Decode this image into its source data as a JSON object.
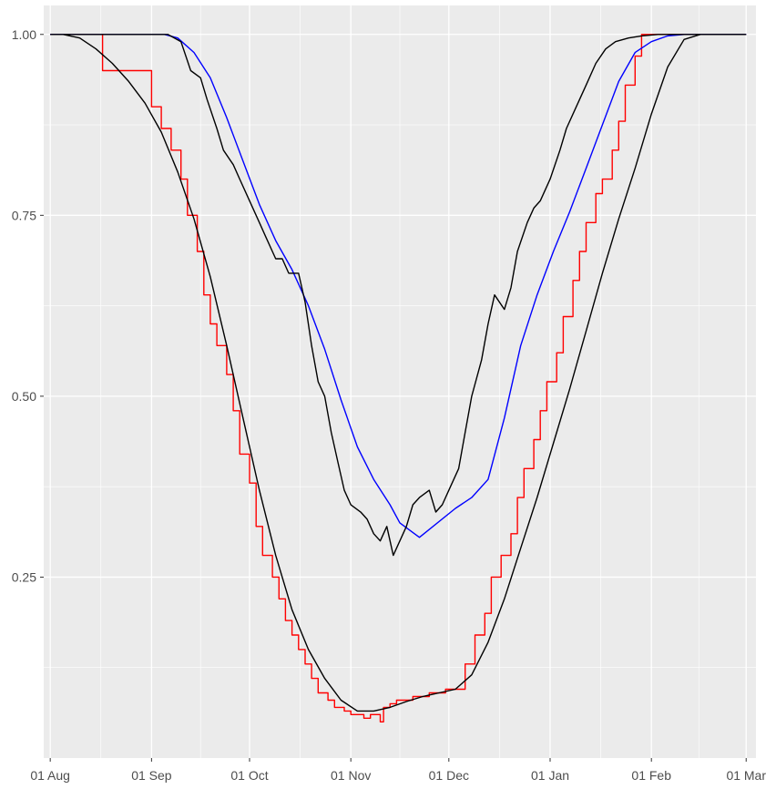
{
  "chart_data": {
    "type": "line",
    "title": "",
    "xlabel": "",
    "ylabel": "",
    "xlim": [
      "2023-07-30",
      "2024-03-04"
    ],
    "ylim": [
      0.0,
      1.04
    ],
    "grid": true,
    "legend": "none",
    "background_color": "#ebebeb",
    "grid_color": "#ffffff",
    "x_ticks": [
      {
        "value": "2023-08-01",
        "label": "01 Aug"
      },
      {
        "value": "2023-09-01",
        "label": "01 Sep"
      },
      {
        "value": "2023-10-01",
        "label": "01 Oct"
      },
      {
        "value": "2023-11-01",
        "label": "01 Nov"
      },
      {
        "value": "2023-12-01",
        "label": "01 Dec"
      },
      {
        "value": "2024-01-01",
        "label": "01 Jan"
      },
      {
        "value": "2024-02-01",
        "label": "01 Feb"
      },
      {
        "value": "2024-03-01",
        "label": "01 Mar"
      }
    ],
    "y_ticks": [
      {
        "value": 0.25,
        "label": "0.25"
      },
      {
        "value": 0.5,
        "label": "0.50"
      },
      {
        "value": 0.75,
        "label": "0.75"
      },
      {
        "value": 1.0,
        "label": "1.00"
      }
    ],
    "series": [
      {
        "color": "#ff0000",
        "step": true,
        "x": [
          "2023-08-01",
          "2023-08-09",
          "2023-08-17",
          "2023-08-27",
          "2023-09-01",
          "2023-09-04",
          "2023-09-07",
          "2023-09-10",
          "2023-09-12",
          "2023-09-15",
          "2023-09-17",
          "2023-09-19",
          "2023-09-21",
          "2023-09-24",
          "2023-09-26",
          "2023-09-28",
          "2023-10-01",
          "2023-10-03",
          "2023-10-05",
          "2023-10-08",
          "2023-10-10",
          "2023-10-12",
          "2023-10-14",
          "2023-10-16",
          "2023-10-18",
          "2023-10-20",
          "2023-10-22",
          "2023-10-25",
          "2023-10-27",
          "2023-10-30",
          "2023-11-01",
          "2023-11-03",
          "2023-11-05",
          "2023-11-07",
          "2023-11-09",
          "2023-11-10",
          "2023-11-11",
          "2023-11-13",
          "2023-11-15",
          "2023-11-20",
          "2023-11-25",
          "2023-11-30",
          "2023-12-06",
          "2023-12-09",
          "2023-12-12",
          "2023-12-14",
          "2023-12-17",
          "2023-12-20",
          "2023-12-22",
          "2023-12-24",
          "2023-12-27",
          "2023-12-29",
          "2023-12-31",
          "2024-01-03",
          "2024-01-05",
          "2024-01-08",
          "2024-01-10",
          "2024-01-12",
          "2024-01-15",
          "2024-01-17",
          "2024-01-20",
          "2024-01-22",
          "2024-01-24",
          "2024-01-27",
          "2024-01-29",
          "2024-02-01",
          "2024-02-03",
          "2024-02-05",
          "2024-02-08",
          "2024-02-10",
          "2024-02-12",
          "2024-02-15",
          "2024-02-19",
          "2024-03-01"
        ],
        "y": [
          1.0,
          1.0,
          0.95,
          0.95,
          0.9,
          0.87,
          0.84,
          0.8,
          0.75,
          0.7,
          0.64,
          0.6,
          0.57,
          0.53,
          0.48,
          0.42,
          0.38,
          0.32,
          0.28,
          0.25,
          0.22,
          0.19,
          0.17,
          0.15,
          0.13,
          0.11,
          0.09,
          0.08,
          0.07,
          0.065,
          0.06,
          0.06,
          0.055,
          0.06,
          0.06,
          0.05,
          0.07,
          0.075,
          0.08,
          0.085,
          0.09,
          0.095,
          0.13,
          0.17,
          0.2,
          0.25,
          0.28,
          0.31,
          0.36,
          0.4,
          0.44,
          0.48,
          0.52,
          0.56,
          0.61,
          0.66,
          0.7,
          0.74,
          0.78,
          0.8,
          0.84,
          0.88,
          0.93,
          0.97,
          1.0,
          1.0,
          1.0,
          1.0,
          1.0,
          1.0,
          1.0,
          1.0,
          1.0,
          1.0
        ]
      },
      {
        "color": "#000000",
        "step": false,
        "x": [
          "2023-08-01",
          "2023-08-05",
          "2023-08-10",
          "2023-08-15",
          "2023-08-20",
          "2023-08-25",
          "2023-08-30",
          "2023-09-04",
          "2023-09-09",
          "2023-09-14",
          "2023-09-19",
          "2023-09-24",
          "2023-09-29",
          "2023-10-04",
          "2023-10-09",
          "2023-10-14",
          "2023-10-19",
          "2023-10-24",
          "2023-10-29",
          "2023-11-03",
          "2023-11-08",
          "2023-11-13",
          "2023-11-18",
          "2023-11-23",
          "2023-11-28",
          "2023-12-03",
          "2023-12-08",
          "2023-12-13",
          "2023-12-18",
          "2023-12-23",
          "2023-12-28",
          "2024-01-02",
          "2024-01-07",
          "2024-01-12",
          "2024-01-17",
          "2024-01-22",
          "2024-01-27",
          "2024-02-01",
          "2024-02-06",
          "2024-02-11",
          "2024-02-16",
          "2024-02-21",
          "2024-02-26",
          "2024-03-01"
        ],
        "y": [
          1.0,
          1.0,
          0.995,
          0.98,
          0.96,
          0.935,
          0.905,
          0.865,
          0.81,
          0.745,
          0.665,
          0.57,
          0.47,
          0.37,
          0.28,
          0.205,
          0.15,
          0.11,
          0.08,
          0.065,
          0.065,
          0.07,
          0.078,
          0.085,
          0.09,
          0.095,
          0.115,
          0.16,
          0.22,
          0.29,
          0.36,
          0.435,
          0.51,
          0.59,
          0.67,
          0.745,
          0.815,
          0.89,
          0.955,
          0.993,
          1.0,
          1.0,
          1.0,
          1.0
        ]
      },
      {
        "color": "#0000ff",
        "step": false,
        "x": [
          "2023-08-01",
          "2023-08-20",
          "2023-09-05",
          "2023-09-09",
          "2023-09-14",
          "2023-09-19",
          "2023-09-24",
          "2023-09-29",
          "2023-10-04",
          "2023-10-09",
          "2023-10-14",
          "2023-10-19",
          "2023-10-24",
          "2023-10-29",
          "2023-11-03",
          "2023-11-08",
          "2023-11-13",
          "2023-11-16",
          "2023-11-22",
          "2023-12-03",
          "2023-12-08",
          "2023-12-13",
          "2023-12-18",
          "2023-12-23",
          "2023-12-28",
          "2024-01-02",
          "2024-01-07",
          "2024-01-12",
          "2024-01-17",
          "2024-01-22",
          "2024-01-27",
          "2024-02-01",
          "2024-02-06",
          "2024-02-11",
          "2024-02-16",
          "2024-02-21",
          "2024-03-01"
        ],
        "y": [
          1.0,
          1.0,
          1.0,
          0.995,
          0.975,
          0.94,
          0.885,
          0.825,
          0.765,
          0.715,
          0.675,
          0.625,
          0.565,
          0.495,
          0.43,
          0.385,
          0.35,
          0.325,
          0.305,
          0.345,
          0.36,
          0.385,
          0.47,
          0.57,
          0.64,
          0.7,
          0.755,
          0.815,
          0.875,
          0.935,
          0.975,
          0.99,
          0.998,
          1.0,
          1.0,
          1.0,
          1.0
        ]
      },
      {
        "color": "#000000",
        "step": false,
        "x": [
          "2023-08-01",
          "2023-09-06",
          "2023-09-10",
          "2023-09-13",
          "2023-09-16",
          "2023-09-18",
          "2023-09-21",
          "2023-09-23",
          "2023-09-26",
          "2023-09-28",
          "2023-10-01",
          "2023-10-04",
          "2023-10-06",
          "2023-10-09",
          "2023-10-11",
          "2023-10-13",
          "2023-10-16",
          "2023-10-18",
          "2023-10-20",
          "2023-10-22",
          "2023-10-24",
          "2023-10-26",
          "2023-10-28",
          "2023-10-30",
          "2023-11-01",
          "2023-11-04",
          "2023-11-06",
          "2023-11-08",
          "2023-11-10",
          "2023-11-12",
          "2023-11-14",
          "2023-11-16",
          "2023-11-18",
          "2023-11-20",
          "2023-11-22",
          "2023-11-25",
          "2023-11-27",
          "2023-11-29",
          "2023-12-01",
          "2023-12-04",
          "2023-12-06",
          "2023-12-08",
          "2023-12-11",
          "2023-12-13",
          "2023-12-15",
          "2023-12-18",
          "2023-12-20",
          "2023-12-22",
          "2023-12-25",
          "2023-12-27",
          "2023-12-29",
          "2024-01-01",
          "2024-01-04",
          "2024-01-06",
          "2024-01-09",
          "2024-01-12",
          "2024-01-15",
          "2024-01-18",
          "2024-01-21",
          "2024-01-25",
          "2024-01-29",
          "2024-02-03",
          "2024-02-10",
          "2024-03-01"
        ],
        "y": [
          1.0,
          1.0,
          0.99,
          0.95,
          0.94,
          0.91,
          0.87,
          0.84,
          0.82,
          0.8,
          0.77,
          0.74,
          0.72,
          0.69,
          0.69,
          0.67,
          0.67,
          0.63,
          0.57,
          0.52,
          0.5,
          0.45,
          0.41,
          0.37,
          0.35,
          0.34,
          0.33,
          0.31,
          0.3,
          0.32,
          0.28,
          0.3,
          0.32,
          0.35,
          0.36,
          0.37,
          0.34,
          0.35,
          0.37,
          0.4,
          0.45,
          0.5,
          0.55,
          0.6,
          0.64,
          0.62,
          0.65,
          0.7,
          0.74,
          0.76,
          0.77,
          0.8,
          0.84,
          0.87,
          0.9,
          0.93,
          0.96,
          0.98,
          0.99,
          0.995,
          0.998,
          1.0,
          1.0,
          1.0
        ]
      }
    ]
  }
}
